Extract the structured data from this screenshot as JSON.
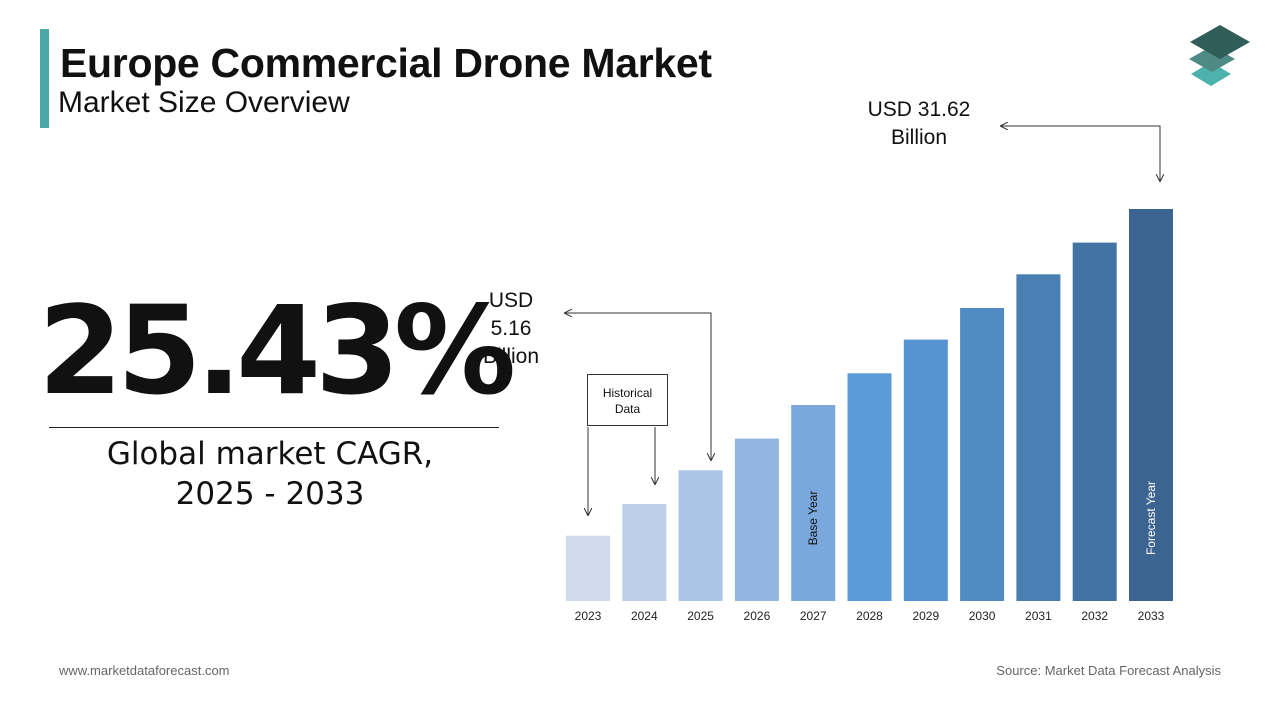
{
  "header": {
    "title": "Europe Commercial Drone Market",
    "subtitle": "Market Size Overview"
  },
  "headline": {
    "cagr_value": "25.43%",
    "cagr_label_line1": "Global market CAGR,",
    "cagr_label_line2": "2025 - 2033"
  },
  "callouts": {
    "start_line1": "USD",
    "start_line2": "5.16",
    "start_line3": "Billion",
    "end_line1": "USD 31.62",
    "end_line2": "Billion",
    "historical_line1": "Historical",
    "historical_line2": "Data"
  },
  "footer": {
    "website": "www.marketdataforecast.com",
    "source": "Source: Market Data Forecast Analysis"
  },
  "colors": {
    "accent": "#4aa9a4",
    "logo_dark": "#2f5d58",
    "logo_mid": "#4f8a84",
    "logo_light": "#4bb3ac"
  },
  "chart_data": {
    "type": "bar",
    "categories": [
      "2023",
      "2024",
      "2025",
      "2026",
      "2027",
      "2028",
      "2029",
      "2030",
      "2031",
      "2032",
      "2033"
    ],
    "values": [
      3.3,
      4.9,
      6.6,
      8.2,
      9.9,
      11.5,
      13.2,
      14.8,
      16.5,
      18.1,
      19.8
    ],
    "ylim": [
      0,
      20
    ],
    "bar_colors": [
      "#d0dcee",
      "#bdd0ea",
      "#abc5e6",
      "#93b6e0",
      "#7aa8dc",
      "#5a9cd9",
      "#5594d0",
      "#508bc3",
      "#4a7fb3",
      "#4373a3",
      "#3b6490"
    ],
    "bar_annotations": [
      {
        "category": "2027",
        "text": "Base Year"
      },
      {
        "category": "2033",
        "text": "Forecast Year"
      }
    ],
    "grid": false,
    "legend": "none"
  }
}
